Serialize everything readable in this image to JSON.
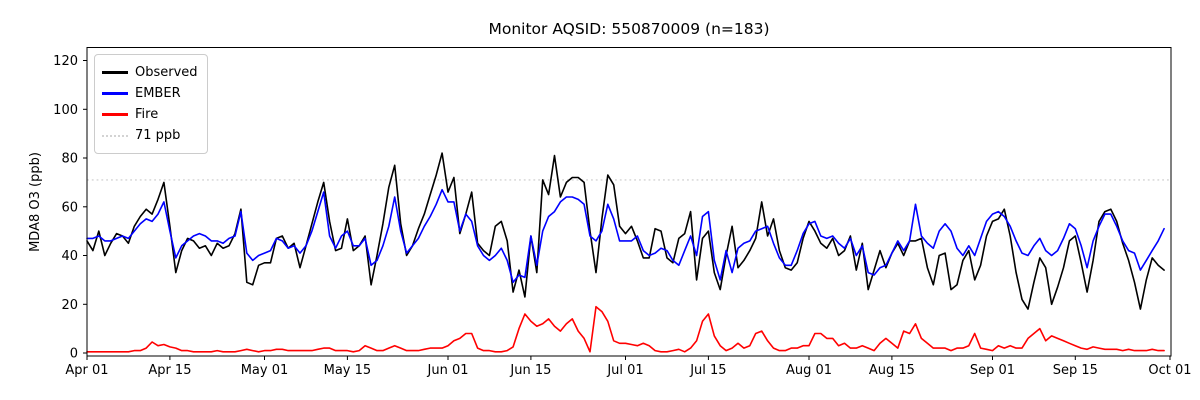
{
  "title": "Monitor AQSID: 550870009 (n=183)",
  "y_axis": {
    "label": "MDA8 O3 (ppb)",
    "ticks": [
      0,
      20,
      40,
      60,
      80,
      100,
      120
    ]
  },
  "x_axis": {
    "tick_labels": [
      "Apr 01",
      "Apr 15",
      "May 01",
      "May 15",
      "Jun 01",
      "Jun 15",
      "Jul 01",
      "Jul 15",
      "Aug 01",
      "Aug 15",
      "Sep 01",
      "Sep 15",
      "Oct 01"
    ],
    "tick_days": [
      0,
      14,
      30,
      44,
      61,
      75,
      91,
      105,
      122,
      136,
      153,
      167,
      183
    ]
  },
  "legend": [
    {
      "label": "Observed",
      "color": "#000000",
      "style": "solid"
    },
    {
      "label": "EMBER",
      "color": "#0000ff",
      "style": "solid"
    },
    {
      "label": "Fire",
      "color": "#ff0000",
      "style": "solid"
    },
    {
      "label": "71 ppb",
      "color": "#d3d3d3",
      "style": "dotted"
    }
  ],
  "chart_data": {
    "type": "line",
    "title": "Monitor AQSID: 550870009 (n=183)",
    "xlabel": "",
    "ylabel": "MDA8 O3 (ppb)",
    "x_start": "Apr 01",
    "x_end": "Sep 30",
    "n_points": 183,
    "ylim": [
      -1,
      125
    ],
    "grid": false,
    "legend_position": "upper left",
    "reference_line": {
      "value": 71,
      "label": "71 ppb",
      "color": "#d3d3d3",
      "style": "dotted"
    },
    "series": [
      {
        "name": "Observed",
        "color": "#000000",
        "values": [
          46,
          42,
          50,
          40,
          45,
          49,
          48,
          45,
          52,
          56,
          59,
          57,
          63,
          70,
          52,
          33,
          42,
          47,
          46,
          43,
          44,
          40,
          45,
          43,
          44,
          49,
          59,
          29,
          28,
          36,
          37,
          37,
          47,
          48,
          43,
          45,
          35,
          44,
          53,
          62,
          70,
          54,
          42,
          43,
          55,
          42,
          44,
          48,
          28,
          40,
          53,
          68,
          77,
          53,
          40,
          44,
          51,
          57,
          65,
          73,
          82,
          66,
          72,
          49,
          57,
          66,
          45,
          42,
          40,
          52,
          54,
          46,
          25,
          34,
          23,
          48,
          33,
          71,
          65,
          81,
          64,
          70,
          72,
          72,
          70,
          50,
          33,
          55,
          73,
          69,
          52,
          49,
          52,
          46,
          39,
          39,
          51,
          50,
          39,
          37,
          47,
          49,
          58,
          30,
          47,
          50,
          33,
          26,
          40,
          52,
          35,
          38,
          42,
          47,
          62,
          48,
          55,
          42,
          35,
          34,
          37,
          47,
          54,
          50,
          45,
          43,
          47,
          40,
          42,
          48,
          34,
          45,
          26,
          34,
          42,
          35,
          41,
          45,
          40,
          46,
          46,
          47,
          35,
          28,
          40,
          41,
          26,
          28,
          38,
          42,
          30,
          36,
          48,
          54,
          55,
          59,
          48,
          33,
          22,
          18,
          29,
          39,
          35,
          20,
          27,
          35,
          46,
          48,
          37,
          25,
          38,
          54,
          58,
          59,
          54,
          45,
          38,
          29,
          18,
          30,
          39,
          36,
          34
        ]
      },
      {
        "name": "EMBER",
        "color": "#0000ff",
        "values": [
          47,
          47,
          48,
          46,
          46,
          47,
          48,
          47,
          50,
          53,
          55,
          54,
          57,
          62,
          50,
          39,
          44,
          46,
          48,
          49,
          48,
          46,
          46,
          45,
          47,
          48,
          58,
          41,
          38,
          40,
          41,
          42,
          47,
          46,
          43,
          44,
          41,
          44,
          50,
          58,
          66,
          48,
          43,
          48,
          50,
          44,
          44,
          47,
          36,
          38,
          44,
          52,
          64,
          50,
          41,
          44,
          47,
          52,
          56,
          61,
          67,
          62,
          62,
          50,
          57,
          54,
          44,
          40,
          38,
          40,
          43,
          38,
          29,
          32,
          31,
          48,
          36,
          50,
          56,
          58,
          62,
          64,
          64,
          63,
          61,
          48,
          46,
          50,
          61,
          55,
          46,
          46,
          46,
          48,
          42,
          40,
          41,
          43,
          42,
          38,
          36,
          42,
          48,
          40,
          56,
          58,
          38,
          30,
          42,
          33,
          43,
          45,
          46,
          50,
          51,
          52,
          45,
          39,
          36,
          36,
          42,
          49,
          53,
          54,
          48,
          47,
          48,
          45,
          43,
          47,
          40,
          44,
          33,
          32,
          35,
          36,
          41,
          46,
          42,
          46,
          61,
          48,
          45,
          43,
          50,
          53,
          50,
          43,
          40,
          44,
          40,
          47,
          54,
          57,
          58,
          56,
          52,
          46,
          41,
          40,
          44,
          47,
          42,
          40,
          42,
          47,
          53,
          51,
          44,
          35,
          46,
          52,
          57,
          57,
          52,
          46,
          42,
          41,
          34,
          38,
          42,
          46,
          51
        ]
      },
      {
        "name": "Fire",
        "color": "#ff0000",
        "values": [
          0.5,
          0.5,
          0.5,
          0.5,
          0.5,
          0.5,
          0.5,
          0.5,
          1,
          1,
          2,
          4.5,
          3,
          3.5,
          2.5,
          2,
          1,
          1,
          0.5,
          0.5,
          0.5,
          0.5,
          1,
          0.5,
          0.5,
          0.5,
          1,
          1.5,
          1,
          0.5,
          1,
          1,
          1.5,
          1.5,
          1,
          1,
          1,
          1,
          1,
          1.5,
          2,
          2,
          1,
          1,
          1,
          0.5,
          1,
          3,
          2,
          1,
          1,
          2,
          3,
          2,
          1,
          1,
          1,
          1.5,
          2,
          2,
          2,
          3,
          5,
          6,
          8,
          8,
          2,
          1,
          1,
          0.5,
          0.5,
          1,
          2.5,
          10,
          16,
          13,
          11,
          12,
          14,
          11,
          9,
          12,
          14,
          9,
          6,
          0.5,
          19,
          17,
          13,
          5,
          4,
          4,
          3.5,
          3,
          4,
          3,
          1,
          0.5,
          0.5,
          1,
          1.5,
          0.5,
          2,
          5,
          13,
          16,
          7,
          3,
          1,
          2,
          4,
          2,
          3,
          8,
          9,
          5,
          2,
          1,
          1,
          2,
          2,
          3,
          3,
          8,
          8,
          6,
          6,
          3,
          4,
          2,
          2,
          3,
          2,
          1,
          4,
          6,
          4,
          2,
          9,
          8,
          12,
          6,
          4,
          2,
          2,
          2,
          1,
          2,
          2,
          3,
          8,
          2,
          1.5,
          1,
          3,
          2,
          3,
          2,
          2,
          6,
          8,
          10,
          5,
          7,
          6,
          5,
          4,
          3,
          2,
          1.5,
          2.5,
          2,
          1.5,
          1.5,
          1.5,
          1,
          1.5,
          1,
          1,
          1,
          1.5,
          1,
          1
        ]
      }
    ]
  }
}
